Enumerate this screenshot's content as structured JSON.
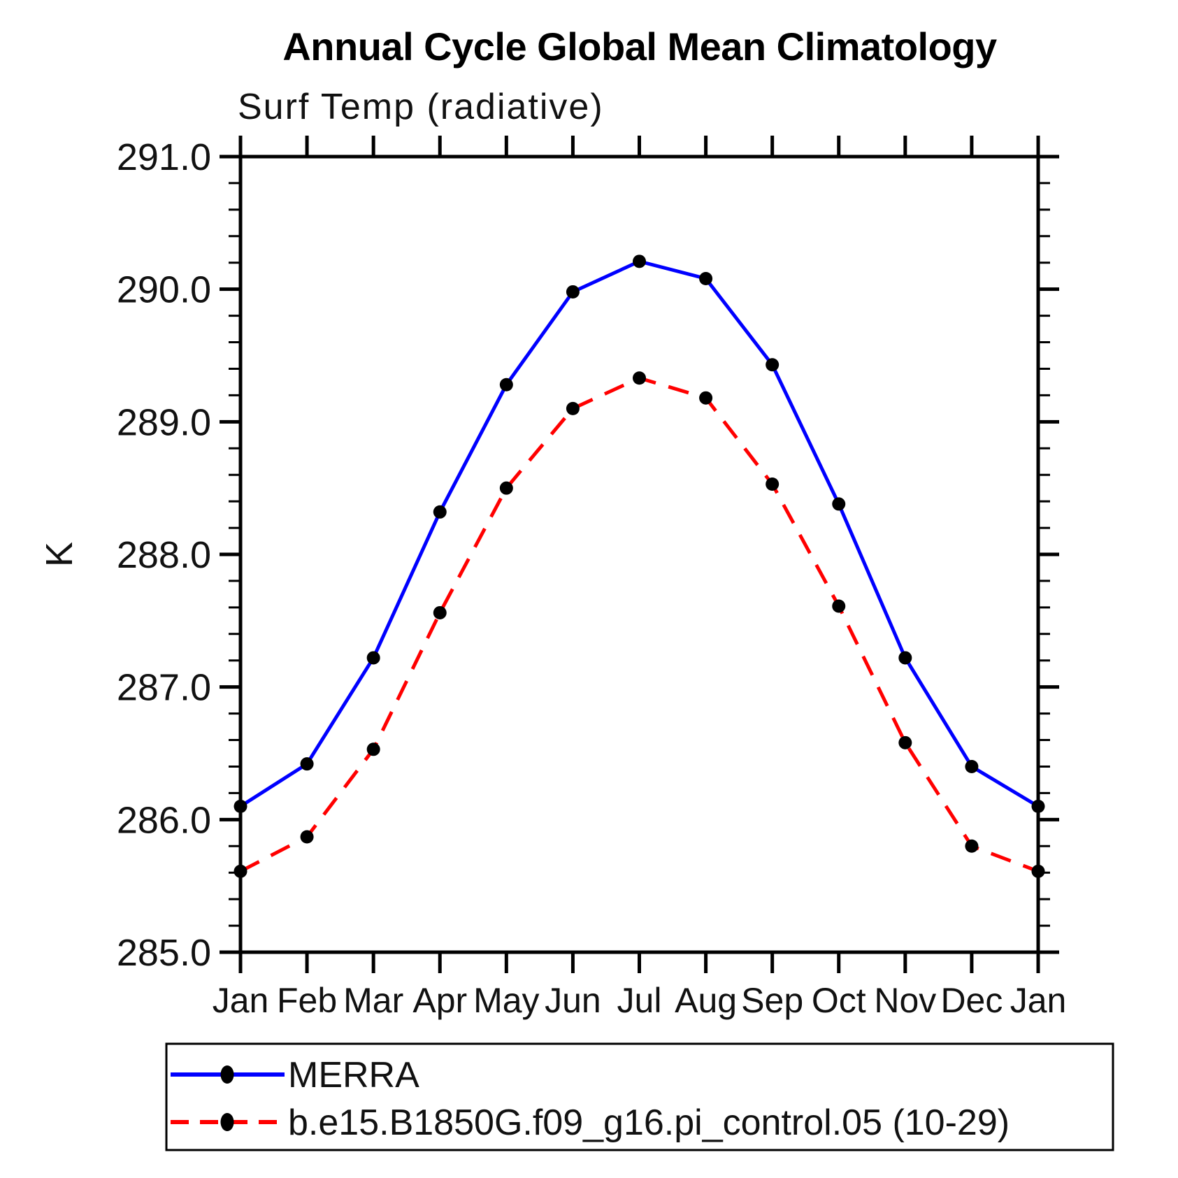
{
  "page": {
    "background_color": "#ffffff"
  },
  "chart_data": {
    "type": "line",
    "title": "Annual Cycle Global Mean Climatology",
    "subtitle": "Surf Temp (radiative)",
    "xlabel": "",
    "ylabel": "K",
    "categories": [
      "Jan",
      "Feb",
      "Mar",
      "Apr",
      "May",
      "Jun",
      "Jul",
      "Aug",
      "Sep",
      "Oct",
      "Nov",
      "Dec",
      "Jan"
    ],
    "ylim": [
      285.0,
      291.0
    ],
    "ytick_step": 1.0,
    "yminor_step": 0.2,
    "ytick_labels": [
      "285.0",
      "286.0",
      "287.0",
      "288.0",
      "289.0",
      "290.0",
      "291.0"
    ],
    "grid": false,
    "legend_position": "bottom",
    "axis_color": "#000000",
    "marker_color": "#000000",
    "series": [
      {
        "name": "MERRA",
        "color": "#0000ff",
        "line_style": "solid",
        "marker": "circle",
        "values": [
          286.1,
          286.42,
          287.22,
          288.32,
          289.28,
          289.98,
          290.21,
          290.08,
          289.43,
          288.38,
          287.22,
          286.4,
          286.1
        ]
      },
      {
        "name": "b.e15.B1850G.f09_g16.pi_control.05 (10-29)",
        "color": "#ff0000",
        "line_style": "dashed",
        "marker": "circle",
        "values": [
          285.61,
          285.87,
          286.53,
          287.56,
          288.5,
          289.1,
          289.33,
          289.18,
          288.53,
          287.61,
          286.58,
          285.8,
          285.61
        ]
      }
    ]
  }
}
